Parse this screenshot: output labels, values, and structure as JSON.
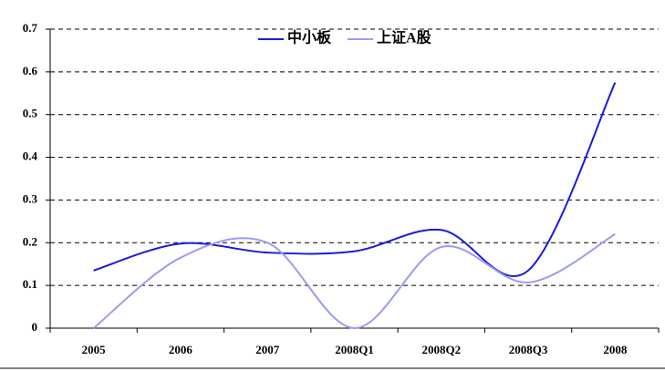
{
  "chart_data": {
    "type": "line",
    "categories": [
      "2005",
      "2006",
      "2007",
      "2008Q1",
      "2008Q2",
      "2008Q3",
      "2008"
    ],
    "series": [
      {
        "name": "中小板",
        "color": "#1a1adc",
        "values": [
          0.135,
          0.198,
          0.177,
          0.18,
          0.23,
          0.135,
          0.575
        ]
      },
      {
        "name": "上证A股",
        "color": "#9a9cf0",
        "values": [
          0,
          0.165,
          0.2,
          0,
          0.19,
          0.107,
          0.22
        ]
      }
    ],
    "ylim": [
      0,
      0.7
    ],
    "yticks": [
      0,
      0.1,
      0.2,
      0.3,
      0.4,
      0.5,
      0.6,
      0.7
    ],
    "grid": true,
    "smooth": true,
    "legend": "top"
  }
}
